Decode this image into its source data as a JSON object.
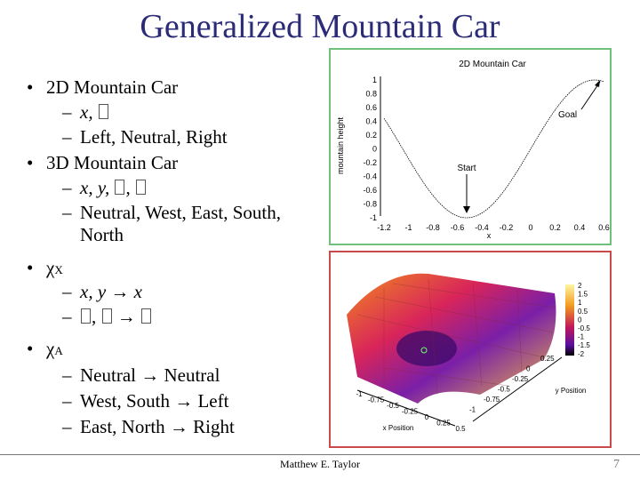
{
  "slide": {
    "title": "Generalized Mountain Car",
    "footer": "Matthew E. Taylor",
    "page_number": "7",
    "bullets": {
      "b1": "2D Mountain Car",
      "b1_s1": "x,",
      "b1_s2": "Left, Neutral, Right",
      "b2": "3D Mountain Car",
      "b2_s1": "x, y,",
      "b2_s2a": "Neutral, West, East, South,",
      "b2_s2b": "North",
      "b3_chi": "χ",
      "b3_sub": "X",
      "b3_s1": "x, y → x",
      "b3_s2": "→",
      "b4_chi": "χ",
      "b4_sub": "A",
      "b4_s1": "Neutral → Neutral",
      "b4_s2": "West, South → Left",
      "b4_s3": "East, North → Right"
    }
  },
  "plot2d": {
    "title": "2D Mountain Car",
    "ylabel": "mountain height",
    "xlabel": "x",
    "yticks": [
      "1",
      "0.8",
      "0.6",
      "0.4",
      "0.2",
      "0",
      "-0.2",
      "-0.4",
      "-0.6",
      "-0.8",
      "-1"
    ],
    "xticks": [
      "-1.2",
      "-1",
      "-0.8",
      "-0.6",
      "-0.4",
      "-0.2",
      "0",
      "0.2",
      "0.4",
      "0.6"
    ],
    "goal_label": "Goal",
    "start_label": "Start"
  },
  "plot3d": {
    "xlabel": "x Position",
    "ylabel": "y Position",
    "colorbar_ticks": [
      "2",
      "1.5",
      "1",
      "0.5",
      "0",
      "-0.5",
      "-1",
      "-1.5",
      "-2"
    ],
    "x_ticks": [
      "-1",
      "-0.75",
      "-0.5",
      "-0.25",
      "0",
      "0.25",
      "0.5"
    ],
    "y_ticks": [
      "0.25",
      "0",
      "-0.25",
      "-0.5",
      "-0.75",
      "-1"
    ]
  },
  "colors": {
    "title": "#2b2b78",
    "fig1_border": "#6fc07a",
    "fig2_border": "#c84a4a"
  }
}
